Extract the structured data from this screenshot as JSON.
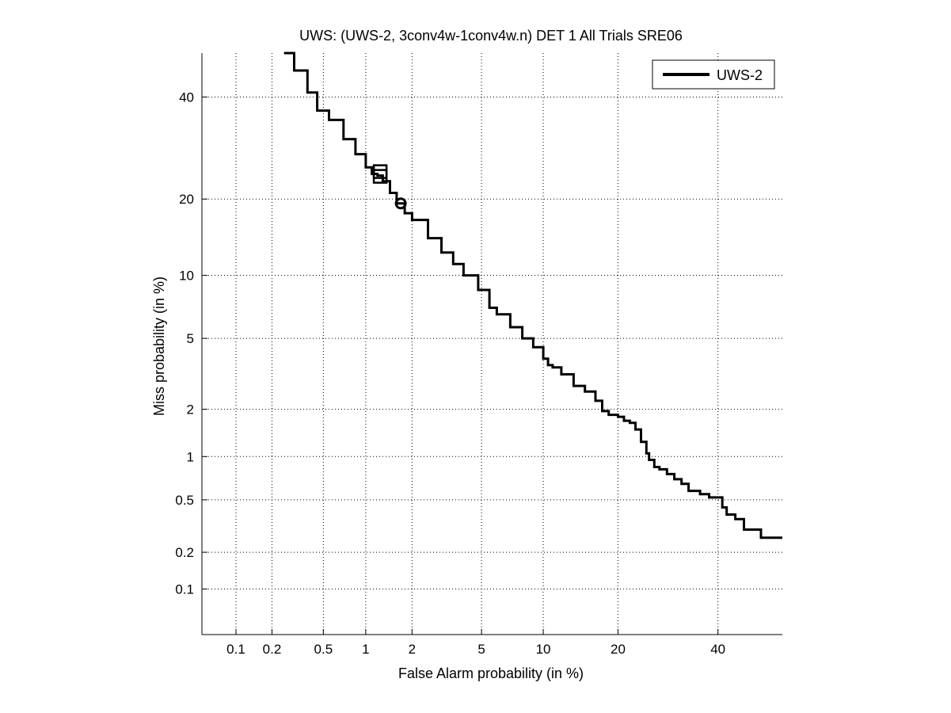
{
  "chart_data": {
    "type": "line",
    "title": "UWS: (UWS-2, 3conv4w-1conv4w.n) DET 1 All Trials SRE06",
    "xlabel": "False Alarm probability (in %)",
    "ylabel": "Miss probability (in %)",
    "scale": "normal-deviate (probit)",
    "xlim": [
      0.05,
      55
    ],
    "ylim": [
      0.04,
      50
    ],
    "x_ticks": [
      0.1,
      0.2,
      0.5,
      1,
      2,
      5,
      10,
      20,
      40
    ],
    "x_tick_labels": [
      "0.1",
      "0.2",
      "0.5",
      "1",
      "2",
      "5",
      "10",
      "20",
      "40"
    ],
    "y_ticks": [
      0.1,
      0.2,
      0.5,
      1,
      2,
      5,
      10,
      20,
      40
    ],
    "y_tick_labels": [
      "0.1",
      "0.2",
      "0.5",
      "1",
      "2",
      "5",
      "10",
      "20",
      "40"
    ],
    "grid": true,
    "legend": {
      "position": "top-right",
      "entries": [
        "UWS-2"
      ]
    },
    "series": [
      {
        "name": "UWS-2",
        "color": "#000000",
        "x": [
          0.25,
          0.3,
          0.38,
          0.45,
          0.55,
          0.7,
          0.85,
          1.0,
          1.1,
          1.2,
          1.3,
          1.45,
          1.6,
          1.8,
          2.0,
          2.5,
          3.0,
          3.5,
          4.0,
          4.8,
          5.5,
          6.0,
          7.0,
          8.0,
          9.0,
          10.0,
          10.5,
          11.0,
          12.0,
          13.5,
          15.0,
          16.5,
          17.5,
          18.5,
          20.0,
          21.0,
          22.0,
          23.0,
          24.0,
          25.0,
          25.5,
          26.5,
          27.5,
          29.0,
          30.5,
          32.0,
          33.5,
          36.0,
          38.0,
          40.0,
          41.0,
          42.0,
          44.0,
          46.0,
          48.0,
          50.0,
          55.0
        ],
        "y": [
          50.0,
          46.0,
          41.0,
          37.0,
          35.0,
          31.0,
          28.0,
          25.5,
          24.3,
          24.0,
          23.0,
          21.0,
          19.3,
          17.8,
          16.8,
          14.3,
          12.5,
          11.2,
          10.0,
          8.6,
          7.1,
          6.6,
          5.7,
          5.0,
          4.5,
          3.9,
          3.6,
          3.5,
          3.2,
          2.75,
          2.55,
          2.25,
          1.95,
          1.85,
          1.8,
          1.7,
          1.65,
          1.5,
          1.25,
          1.05,
          0.95,
          0.85,
          0.82,
          0.76,
          0.7,
          0.65,
          0.58,
          0.55,
          0.52,
          0.52,
          0.44,
          0.39,
          0.36,
          0.3,
          0.3,
          0.26,
          0.26
        ]
      }
    ],
    "markers": [
      {
        "series": "UWS-2",
        "shape": "square",
        "x": 1.25,
        "y": 24.0,
        "count": 2
      },
      {
        "series": "UWS-2",
        "shape": "circle",
        "x": 1.7,
        "y": 19.3
      }
    ]
  }
}
